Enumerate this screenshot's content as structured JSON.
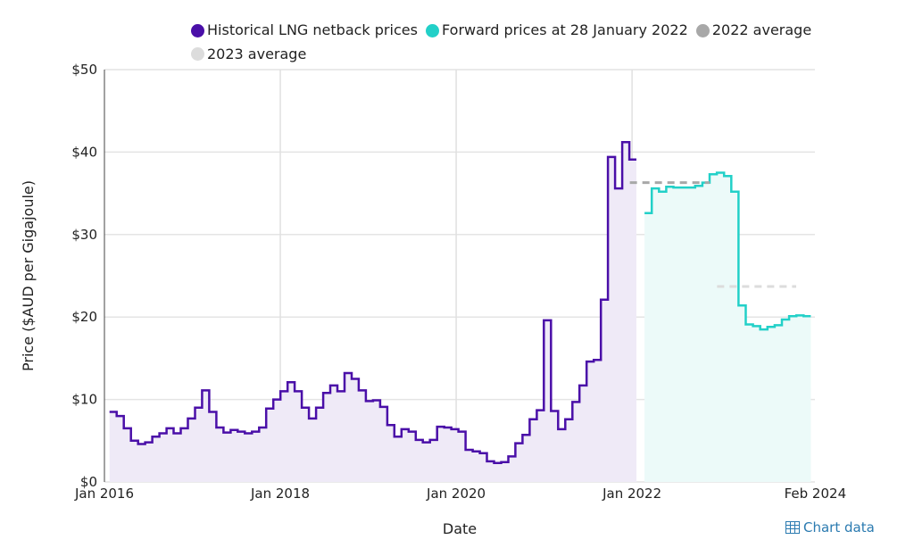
{
  "chart_data": {
    "type": "line",
    "xlabel": "Date",
    "ylabel": "Price ($AUD per Gigajoule)",
    "ylim": [
      0,
      50
    ],
    "yticks": [
      0,
      10,
      20,
      30,
      40,
      50
    ],
    "ytick_labels": [
      "$0",
      "$10",
      "$20",
      "$30",
      "$40",
      "$50"
    ],
    "xticks_month_index": [
      0,
      24,
      48,
      72,
      97
    ],
    "xtick_labels": [
      "Jan 2016",
      "Jan 2018",
      "Jan 2020",
      "Jan 2022",
      "Feb 2024"
    ],
    "grid": true,
    "legend_position": "top",
    "series": [
      {
        "name": "Historical LNG netback prices",
        "color": "#4a0fa8",
        "fill": "#efeaf7",
        "start_month": 0.7,
        "end_month": 72.6,
        "step": true,
        "values": [
          8.5,
          8.0,
          6.5,
          5.0,
          4.6,
          4.8,
          5.5,
          5.9,
          6.5,
          5.9,
          6.5,
          7.7,
          9.0,
          11.1,
          8.5,
          6.6,
          6.0,
          6.3,
          6.1,
          5.9,
          6.1,
          6.6,
          8.9,
          10.0,
          11.0,
          12.1,
          11.0,
          9.0,
          7.7,
          9.0,
          10.8,
          11.7,
          11.0,
          13.2,
          12.5,
          11.1,
          9.8,
          9.9,
          9.1,
          6.9,
          5.5,
          6.4,
          6.1,
          5.1,
          4.8,
          5.1,
          6.7,
          6.6,
          6.4,
          6.1,
          3.9,
          3.7,
          3.5,
          2.5,
          2.3,
          2.4,
          3.1,
          4.7,
          5.7,
          7.6,
          8.7,
          19.6,
          8.6,
          6.4,
          7.6,
          9.7,
          11.7,
          14.6,
          14.8,
          22.1,
          39.4,
          35.6,
          41.2,
          39.1
        ]
      },
      {
        "name": "Forward prices at 28 January 2022",
        "color": "#22d0c8",
        "fill": "#ecfaf9",
        "start_month": 73.7,
        "end_month": 96.4,
        "step": true,
        "values": [
          32.6,
          35.6,
          35.2,
          35.8,
          35.7,
          35.7,
          35.7,
          35.9,
          36.3,
          37.3,
          37.5,
          37.1,
          35.2,
          21.4,
          19.1,
          18.9,
          18.5,
          18.8,
          19.0,
          19.7,
          20.1,
          20.2,
          20.1
        ]
      },
      {
        "name": "2022 average",
        "color": "#a8a8a8",
        "start_month": 71.7,
        "end_month": 82.6,
        "value": 36.3,
        "dashed": true
      },
      {
        "name": "2023 average",
        "color": "#dcdcdc",
        "start_month": 83.6,
        "end_month": 94.4,
        "value": 23.7,
        "dashed": true
      }
    ],
    "legend_labels": [
      "Historical LNG netback prices",
      "Forward prices at 28 January 2022",
      "2022 average",
      "2023 average"
    ]
  },
  "footer": {
    "chart_data_link": "Chart data"
  }
}
